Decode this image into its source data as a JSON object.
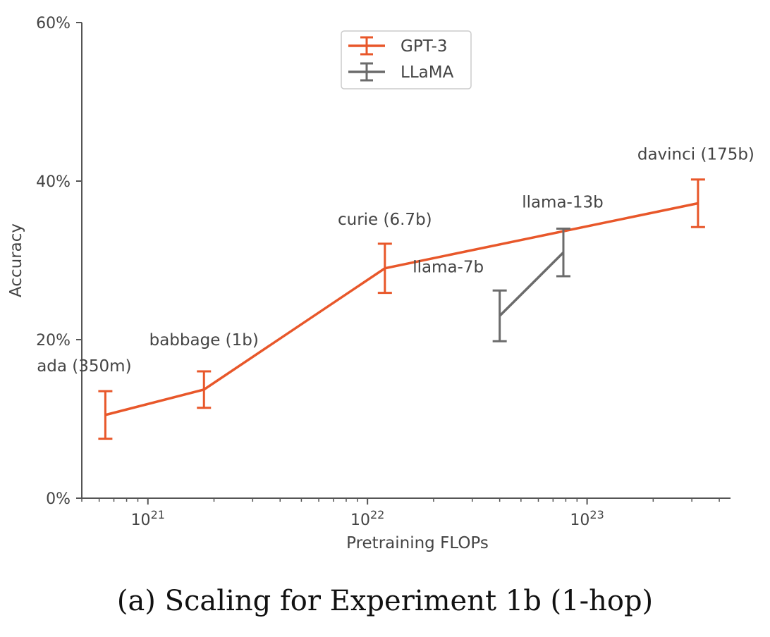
{
  "caption": "(a) Scaling for Experiment 1b (1-hop)",
  "chart_data": {
    "type": "line",
    "title": "",
    "xlabel": "Pretraining FLOPs",
    "ylabel": "Accuracy",
    "xscale": "log",
    "xlim": [
      5e+20,
      4.5e+23
    ],
    "ylim": [
      0,
      60
    ],
    "yticks": [
      0,
      20,
      40,
      60
    ],
    "ytick_labels": [
      "0%",
      "20%",
      "40%",
      "60%"
    ],
    "xticks": [
      1e+21,
      1e+22,
      1e+23
    ],
    "xtick_labels": [
      {
        "base": "10",
        "exp": "21"
      },
      {
        "base": "10",
        "exp": "22"
      },
      {
        "base": "10",
        "exp": "23"
      }
    ],
    "legend_position": "top-center",
    "series": [
      {
        "name": "GPT-3",
        "color": "#e8572a",
        "points": [
          {
            "x": 6.4e+20,
            "y": 10.5,
            "err": 3.0,
            "label": "ada (350m)"
          },
          {
            "x": 1.8e+21,
            "y": 13.7,
            "err": 2.3,
            "label": "babbage (1b)"
          },
          {
            "x": 1.2e+22,
            "y": 29.0,
            "err": 3.1,
            "label": "curie (6.7b)"
          },
          {
            "x": 3.2e+23,
            "y": 37.2,
            "err": 3.0,
            "label": "davinci (175b)"
          }
        ]
      },
      {
        "name": "LLaMA",
        "color": "#6b6b6b",
        "points": [
          {
            "x": 4e+22,
            "y": 23.0,
            "err": 3.2,
            "label": "llama-7b"
          },
          {
            "x": 7.8e+22,
            "y": 31.0,
            "err": 3.0,
            "label": "llama-13b"
          }
        ]
      }
    ]
  }
}
